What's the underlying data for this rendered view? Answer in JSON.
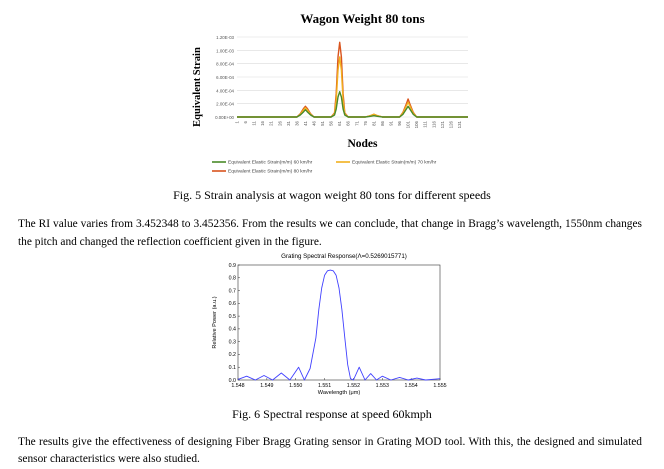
{
  "figure1": {
    "chart_data": {
      "type": "line",
      "title": "Wagon Weight 80 tons",
      "xlabel": "Nodes",
      "ylabel": "Equivalent Strain",
      "ylim": [
        0,
        0.0012
      ],
      "yticks": [
        "0.00E+00",
        "2.00E-04",
        "4.00E-04",
        "6.00E-04",
        "8.00E-04",
        "1.00E-03",
        "1.20E-03"
      ],
      "xticks": [
        "1",
        "6",
        "11",
        "16",
        "21",
        "26",
        "31",
        "36",
        "41",
        "46",
        "51",
        "56",
        "61",
        "66",
        "71",
        "76",
        "81",
        "86",
        "91",
        "96",
        "101",
        "106",
        "111",
        "116",
        "121",
        "126",
        "131"
      ],
      "grid": true,
      "legend_position": "bottom",
      "x": [
        1,
        6,
        11,
        16,
        21,
        26,
        31,
        36,
        38,
        40,
        41,
        42,
        44,
        46,
        51,
        56,
        58,
        59,
        60,
        61,
        62,
        63,
        64,
        66,
        71,
        76,
        79,
        81,
        83,
        86,
        91,
        96,
        98,
        100,
        101,
        102,
        104,
        106,
        111,
        116,
        121,
        126,
        131,
        136
      ],
      "series": [
        {
          "name": "Equivalent Elastic Strain(m/m) 60 km/hr",
          "color": "#4a8a2a",
          "values": [
            0,
            0,
            0,
            0,
            0,
            0,
            0,
            0,
            3e-05,
            8e-05,
            0.00011,
            8e-05,
            3e-05,
            0,
            0,
            0,
            3e-05,
            0.00012,
            0.0003,
            0.00038,
            0.0003,
            0.00012,
            3e-05,
            0,
            0,
            0,
            1e-05,
            2e-05,
            1e-05,
            0,
            0,
            0,
            4e-05,
            0.00012,
            0.00016,
            0.00012,
            4e-05,
            0,
            0,
            0,
            0,
            0,
            0,
            0
          ]
        },
        {
          "name": "Equivalent Elastic Strain(m/m) 70 km/hr",
          "color": "#f2b01e",
          "values": [
            0,
            0,
            0,
            0,
            0,
            0,
            0,
            0,
            4e-05,
            0.00011,
            0.00014,
            0.00011,
            4e-05,
            0,
            0,
            0,
            5e-05,
            0.00025,
            0.0007,
            0.0009,
            0.0007,
            0.00025,
            5e-05,
            0,
            0,
            0,
            2e-05,
            4e-05,
            2e-05,
            0,
            0,
            0,
            6e-05,
            0.00017,
            0.00022,
            0.00017,
            6e-05,
            0,
            0,
            0,
            0,
            0,
            0,
            0
          ]
        },
        {
          "name": "Equivalent Elastic Strain(m/m) 80 km/hr",
          "color": "#d9541e",
          "values": [
            0,
            0,
            0,
            0,
            0,
            0,
            0,
            0,
            5e-05,
            0.00013,
            0.00016,
            0.00013,
            5e-05,
            0,
            0,
            0,
            6e-05,
            0.00035,
            0.0009,
            0.00112,
            0.0009,
            0.00035,
            6e-05,
            0,
            0,
            0,
            2e-05,
            4e-05,
            2e-05,
            0,
            0,
            0,
            7e-05,
            0.0002,
            0.00027,
            0.0002,
            7e-05,
            0,
            0,
            0,
            0,
            0,
            0,
            0
          ]
        }
      ]
    },
    "caption": "Fig. 5 Strain analysis at wagon weight 80 tons for different speeds"
  },
  "paragraph1": "The RI value varies from 3.452348 to 3.452356. From the results we can conclude, that change in Bragg’s wavelength, 1550nm changes the pitch and changed the reflection coefficient given in the figure.",
  "figure2": {
    "chart_data": {
      "type": "line",
      "title": "Grating Spectral Response(Λ=0.5269015771)",
      "xlabel": "Wavelength (μm)",
      "ylabel": "Relative Power (a.u.)",
      "xlim": [
        1.548,
        1.555
      ],
      "ylim": [
        0,
        0.9
      ],
      "xticks": [
        "1.548",
        "1.549",
        "1.550",
        "1.551",
        "1.552",
        "1.553",
        "1.554",
        "1.555"
      ],
      "yticks": [
        "0.0",
        "0.1",
        "0.2",
        "0.3",
        "0.4",
        "0.5",
        "0.6",
        "0.7",
        "0.8",
        "0.9"
      ],
      "color": "#4040ff",
      "x": [
        1.548,
        1.5483,
        1.5486,
        1.5489,
        1.5492,
        1.5495,
        1.5498,
        1.5501,
        1.5503,
        1.5505,
        1.5507,
        1.5508,
        1.5509,
        1.551,
        1.5511,
        1.5512,
        1.5513,
        1.5514,
        1.5515,
        1.5516,
        1.5517,
        1.5518,
        1.5519,
        1.552,
        1.5522,
        1.5524,
        1.5526,
        1.5528,
        1.553,
        1.5533,
        1.5536,
        1.5539,
        1.5542,
        1.5545,
        1.555
      ],
      "y": [
        0.005,
        0.03,
        0.0,
        0.035,
        0.0,
        0.055,
        0.0,
        0.1,
        0.0,
        0.09,
        0.33,
        0.55,
        0.72,
        0.82,
        0.855,
        0.86,
        0.855,
        0.82,
        0.72,
        0.55,
        0.33,
        0.12,
        0.01,
        0.0,
        0.1,
        0.0,
        0.05,
        0.0,
        0.03,
        0.0,
        0.02,
        0.0,
        0.015,
        0.0,
        0.01
      ]
    },
    "caption": "Fig. 6 Spectral response at speed 60kmph"
  },
  "paragraph2": "The results give the effectiveness of designing Fiber Bragg Grating sensor in Grating MOD tool. With this, the designed and simulated sensor characteristics were also studied."
}
